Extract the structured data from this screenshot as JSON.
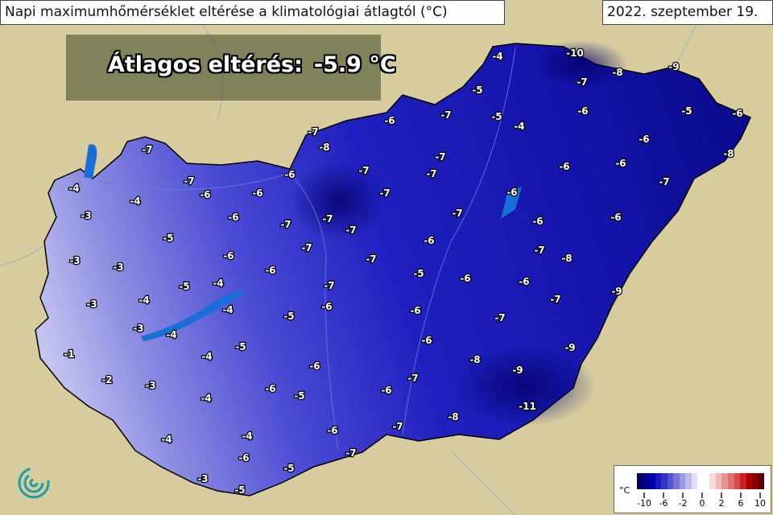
{
  "title": "Napi maximumhőmérséklet eltérése a klimatológiai átlagtól (°C)",
  "date": "2022. szeptember 19.",
  "average": {
    "label": "Átlagos eltérés:",
    "value": "-5.9 °C"
  },
  "colors": {
    "background": "#d6cc9e",
    "light_blue": "#b4b4ec",
    "mid_blue": "#3a3ad0",
    "dark_blue": "#0a0a8c"
  },
  "station_values": [
    -4,
    -10,
    -8,
    -9,
    -7,
    -5,
    -6,
    -5,
    -6,
    -5,
    -4,
    -7,
    -6,
    -7,
    -8,
    -6,
    -8,
    -7,
    -7,
    -7,
    -6,
    -6,
    -7,
    -6,
    -7,
    -7,
    -4,
    -6,
    -6,
    -7,
    -6,
    -4,
    -3,
    -6,
    -7,
    -7,
    -7,
    -7,
    -6,
    -6,
    -5,
    -6,
    -7,
    -3,
    -6,
    -7,
    -7,
    -8,
    -3,
    -6,
    -5,
    -6,
    -6,
    -5,
    -4,
    -7,
    -9,
    -3,
    -4,
    -4,
    -6,
    -6,
    -7,
    -5,
    -3,
    -4,
    -7,
    -5,
    -6,
    -9,
    -1,
    -4,
    -6,
    -8,
    -9,
    -2,
    -3,
    -7,
    -6,
    -5,
    -6,
    -4,
    -11,
    -8,
    -6,
    -7,
    -4,
    -4,
    -6,
    -7,
    -5,
    -3,
    -5
  ],
  "legend": {
    "unit": "°C",
    "ticks": [
      "-10",
      "-6",
      "-2",
      "0",
      "2",
      "6",
      "10"
    ],
    "colors": [
      "#000060",
      "#00008a",
      "#0000b0",
      "#1a1ac0",
      "#3434c8",
      "#5555d0",
      "#7777da",
      "#9999e4",
      "#bbbbee",
      "#e0e0f8",
      "#ffffff",
      "#ffffff",
      "#f8dcdc",
      "#f0b8b8",
      "#e89494",
      "#e07070",
      "#d84848",
      "#cc2020",
      "#b00000",
      "#880000",
      "#5a0000"
    ]
  }
}
